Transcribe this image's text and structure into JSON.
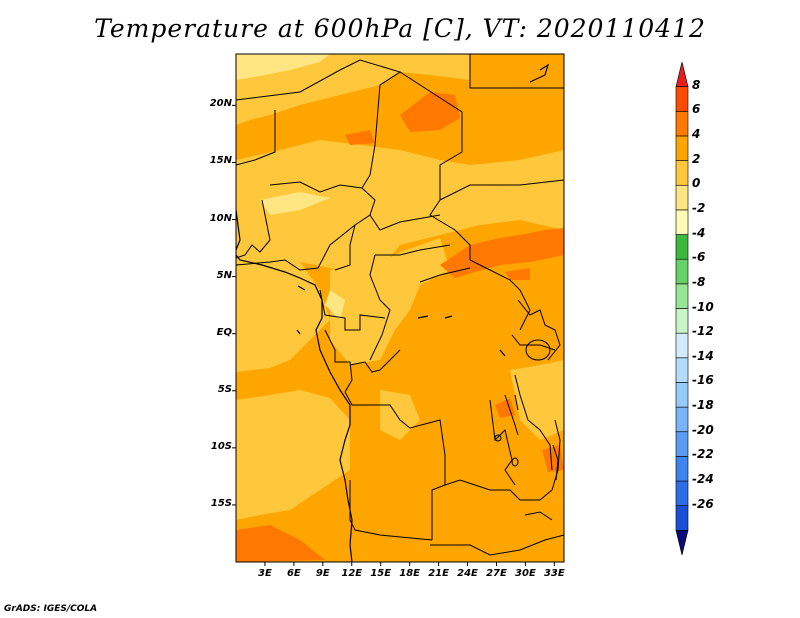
{
  "title": "Temperature at 600hPa [C], VT: 2020110412",
  "credit": "GrADS: IGES/COLA",
  "map": {
    "projection": "lat-lon",
    "lon_range": [
      0,
      34
    ],
    "lat_range": [
      -20,
      24.5
    ],
    "lat_ticks": [
      {
        "value": 20,
        "label": "20N"
      },
      {
        "value": 15,
        "label": "15N"
      },
      {
        "value": 10,
        "label": "10N"
      },
      {
        "value": 5,
        "label": "5N"
      },
      {
        "value": 0,
        "label": "EQ"
      },
      {
        "value": -5,
        "label": "5S"
      },
      {
        "value": -10,
        "label": "10S"
      },
      {
        "value": -15,
        "label": "15S"
      }
    ],
    "lon_ticks": [
      {
        "value": 3,
        "label": "3E"
      },
      {
        "value": 6,
        "label": "6E"
      },
      {
        "value": 9,
        "label": "9E"
      },
      {
        "value": 12,
        "label": "12E"
      },
      {
        "value": 15,
        "label": "15E"
      },
      {
        "value": 18,
        "label": "18E"
      },
      {
        "value": 21,
        "label": "21E"
      },
      {
        "value": 24,
        "label": "24E"
      },
      {
        "value": 27,
        "label": "27E"
      },
      {
        "value": 30,
        "label": "30E"
      },
      {
        "value": 33,
        "label": "33E"
      }
    ]
  },
  "colorbar": {
    "colors": [
      "#0c0c78",
      "#1a4fd6",
      "#2d6ee6",
      "#3c84ee",
      "#5a9cf2",
      "#78b4f6",
      "#96caf8",
      "#b4dcfa",
      "#d2ecfc",
      "#c8f5c8",
      "#96e696",
      "#64d264",
      "#3cb93c",
      "#fffab4",
      "#ffe682",
      "#ffc83c",
      "#ffa500",
      "#ff7800",
      "#ff4b00",
      "#e61e1e"
    ],
    "labels": [
      "8",
      "6",
      "4",
      "2",
      "0",
      "-2",
      "-4",
      "-6",
      "-8",
      "-10",
      "-12",
      "-14",
      "-16",
      "-18",
      "-20",
      "-22",
      "-24",
      "-26"
    ]
  }
}
